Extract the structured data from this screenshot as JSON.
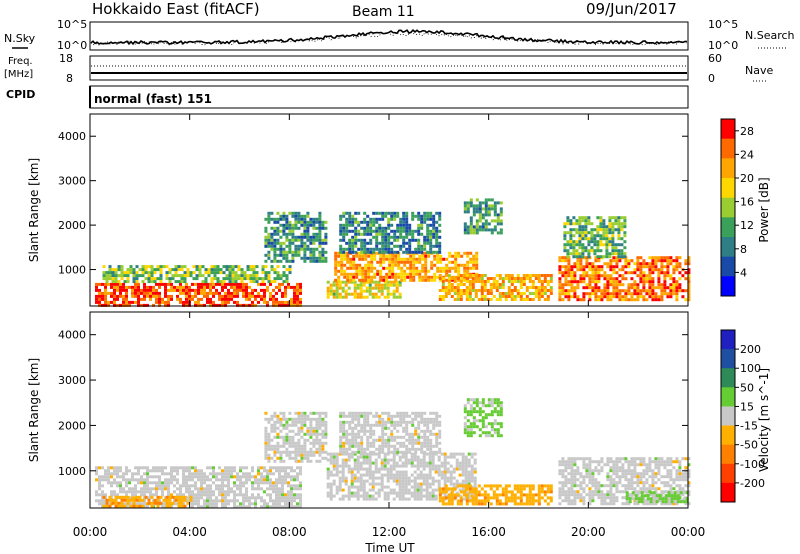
{
  "header": {
    "title": "Hokkaido East (fitACF)",
    "beam": "Beam 11",
    "date": "09/Jun/2017"
  },
  "noise_panel": {
    "left_label": "N.Sky",
    "right_label": "N.Search",
    "left_ticks": [
      "10^5",
      "10^0"
    ],
    "right_ticks": [
      "10^5",
      "10^0"
    ]
  },
  "freq_panel": {
    "label_line1": "Freq.",
    "label_line2": "[MHz]",
    "left_ticks": [
      "18",
      "8"
    ],
    "right_ticks": [
      "60",
      "0"
    ],
    "right_label": "Nave",
    "cpid_label": "CPID"
  },
  "cpid_text": "normal (fast) 151",
  "time_axis": {
    "label": "Time UT",
    "ticks": [
      "00:00",
      "04:00",
      "08:00",
      "12:00",
      "16:00",
      "20:00",
      "00:00"
    ]
  },
  "colors": {
    "power_scale": [
      "#0000ff",
      "#1a4aa8",
      "#2e7e86",
      "#3aa05a",
      "#9acd32",
      "#ffd700",
      "#ffa500",
      "#ff6a00",
      "#ff0000"
    ],
    "velocity_scale": [
      "#2020c0",
      "#1f4fa0",
      "#2e8b57",
      "#66cc33",
      "#c8c8c8",
      "#ffb000",
      "#ff8000",
      "#ff4000",
      "#ff0000"
    ]
  },
  "chart_data": [
    {
      "type": "heatmap",
      "name": "power",
      "ylabel": "Slant Range [km]",
      "xlabel": "Time UT",
      "ylim": [
        180,
        4500
      ],
      "yticks": [
        "1000",
        "2000",
        "3000",
        "4000"
      ],
      "colorbar": {
        "label": "Power [dB]",
        "ticks": [
          "4",
          "8",
          "12",
          "16",
          "20",
          "24",
          "28"
        ],
        "range": [
          0,
          30
        ]
      },
      "regions": [
        {
          "t0": 0.2,
          "t1": 8.5,
          "r0": 220,
          "r1": 700,
          "value": 26
        },
        {
          "t0": 0.5,
          "t1": 8.0,
          "r0": 700,
          "r1": 1100,
          "value": 14
        },
        {
          "t0": 7.0,
          "t1": 9.5,
          "r0": 1200,
          "r1": 2300,
          "value": 10
        },
        {
          "t0": 9.5,
          "t1": 12.5,
          "r0": 350,
          "r1": 750,
          "value": 18
        },
        {
          "t0": 9.8,
          "t1": 15.5,
          "r0": 750,
          "r1": 1400,
          "value": 22
        },
        {
          "t0": 10.0,
          "t1": 14.0,
          "r0": 1400,
          "r1": 2300,
          "value": 9
        },
        {
          "t0": 15.0,
          "t1": 16.5,
          "r0": 1800,
          "r1": 2600,
          "value": 11
        },
        {
          "t0": 14.0,
          "t1": 18.5,
          "r0": 300,
          "r1": 900,
          "value": 21
        },
        {
          "t0": 18.8,
          "t1": 24.0,
          "r0": 300,
          "r1": 1300,
          "value": 24
        },
        {
          "t0": 19.0,
          "t1": 21.5,
          "r0": 1300,
          "r1": 2200,
          "value": 13
        }
      ]
    },
    {
      "type": "heatmap",
      "name": "velocity",
      "ylabel": "Slant Range [km]",
      "xlabel": "Time UT",
      "ylim": [
        180,
        4500
      ],
      "yticks": [
        "1000",
        "2000",
        "3000",
        "4000"
      ],
      "colorbar": {
        "label": "Velocity [m s^-1]",
        "ticks": [
          "200",
          "100",
          "50",
          "15",
          "-15",
          "-50",
          "-100",
          "-200"
        ],
        "range": [
          -250,
          250
        ]
      },
      "regions": [
        {
          "t0": 0.2,
          "t1": 8.5,
          "r0": 220,
          "r1": 1100,
          "value": 0
        },
        {
          "t0": 0.5,
          "t1": 4.0,
          "r0": 220,
          "r1": 450,
          "value": -70
        },
        {
          "t0": 7.0,
          "t1": 9.5,
          "r0": 1200,
          "r1": 2300,
          "value": 0
        },
        {
          "t0": 9.5,
          "t1": 15.5,
          "r0": 350,
          "r1": 1400,
          "value": 0
        },
        {
          "t0": 10.0,
          "t1": 14.0,
          "r0": 1400,
          "r1": 2300,
          "value": 0
        },
        {
          "t0": 15.0,
          "t1": 16.5,
          "r0": 1800,
          "r1": 2600,
          "value": 40
        },
        {
          "t0": 14.0,
          "t1": 18.5,
          "r0": 300,
          "r1": 700,
          "value": -60
        },
        {
          "t0": 18.8,
          "t1": 24.0,
          "r0": 300,
          "r1": 1300,
          "value": 0
        },
        {
          "t0": 21.5,
          "t1": 24.0,
          "r0": 300,
          "r1": 550,
          "value": 40
        }
      ]
    }
  ]
}
